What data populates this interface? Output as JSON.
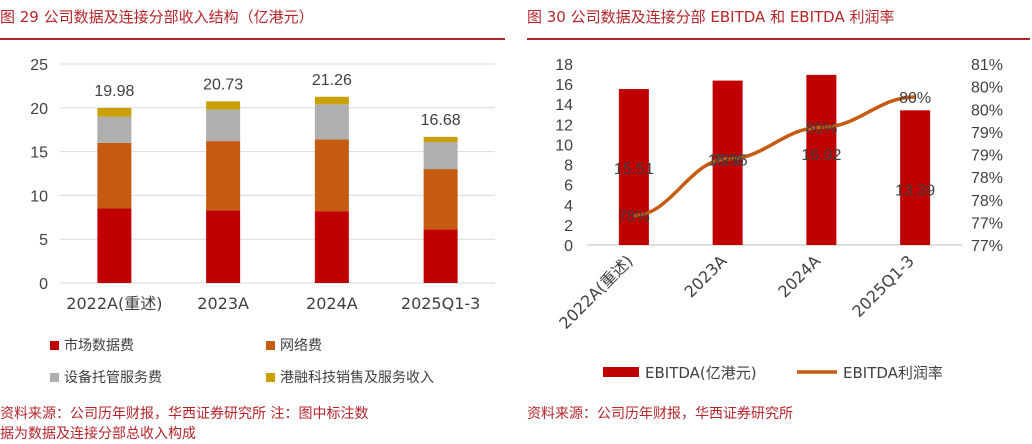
{
  "left": {
    "title": "图 29  公司数据及连接分部收入结构（亿港元）",
    "source": "资料来源：公司历年财报，华西证券研究所   注：图中标注数",
    "source2": "据为数据及连接分部总收入构成",
    "chart_data": {
      "type": "bar",
      "stacked": true,
      "categories": [
        "2022A(重述)",
        "2023A",
        "2024A",
        "2025Q1-3"
      ],
      "series": [
        {
          "name": "市场数据费",
          "color": "#c00000",
          "values": [
            8.5,
            8.3,
            8.2,
            6.1
          ]
        },
        {
          "name": "网络费",
          "color": "#c55a11",
          "values": [
            7.5,
            7.9,
            8.2,
            6.9
          ]
        },
        {
          "name": "设备托管服务费",
          "color": "#afafaf",
          "values": [
            3.0,
            3.6,
            4.0,
            3.1
          ]
        },
        {
          "name": "港融科技销售及服务收入",
          "color": "#c9a000",
          "values": [
            0.98,
            0.93,
            0.86,
            0.58
          ]
        }
      ],
      "totals": [
        "19.98",
        "20.73",
        "21.26",
        "16.68"
      ],
      "ylim": [
        0,
        25
      ],
      "yticks": [
        "0",
        "5",
        "10",
        "15",
        "20",
        "25"
      ],
      "grid": true,
      "legend_position": "bottom"
    }
  },
  "right": {
    "title": "图 30   公司数据及连接分部 EBITDA 和 EBITDA 利润率",
    "source": "资料来源：公司历年财报，华西证券研究所",
    "chart_data": {
      "type": "bar",
      "categories": [
        "2022A(重述)",
        "2023A",
        "2024A",
        "2025Q1-3"
      ],
      "series": [
        {
          "name": "EBITDA(亿港元)",
          "type": "bar",
          "axis": "left",
          "color": "#c00000",
          "values": [
            15.51,
            16.35,
            16.92,
            13.39
          ],
          "labels": [
            "15.51",
            "16.35",
            "16.92",
            "13.39"
          ]
        },
        {
          "name": "EBITDA利润率",
          "type": "line",
          "axis": "right",
          "color": "#c55a11",
          "values": [
            0.7765,
            0.789,
            0.796,
            0.8027
          ],
          "labels": [
            "78%",
            "79%",
            "80%",
            "80%"
          ]
        }
      ],
      "ylim_left": [
        0,
        18
      ],
      "yticks_left": [
        "0",
        "2",
        "4",
        "6",
        "8",
        "10",
        "12",
        "14",
        "16",
        "18"
      ],
      "ylim_right": [
        0.77,
        0.81
      ],
      "yticks_right": [
        "77%",
        "77%",
        "78%",
        "78%",
        "79%",
        "79%",
        "80%",
        "80%",
        "81%"
      ],
      "grid": false,
      "legend_position": "bottom"
    }
  }
}
